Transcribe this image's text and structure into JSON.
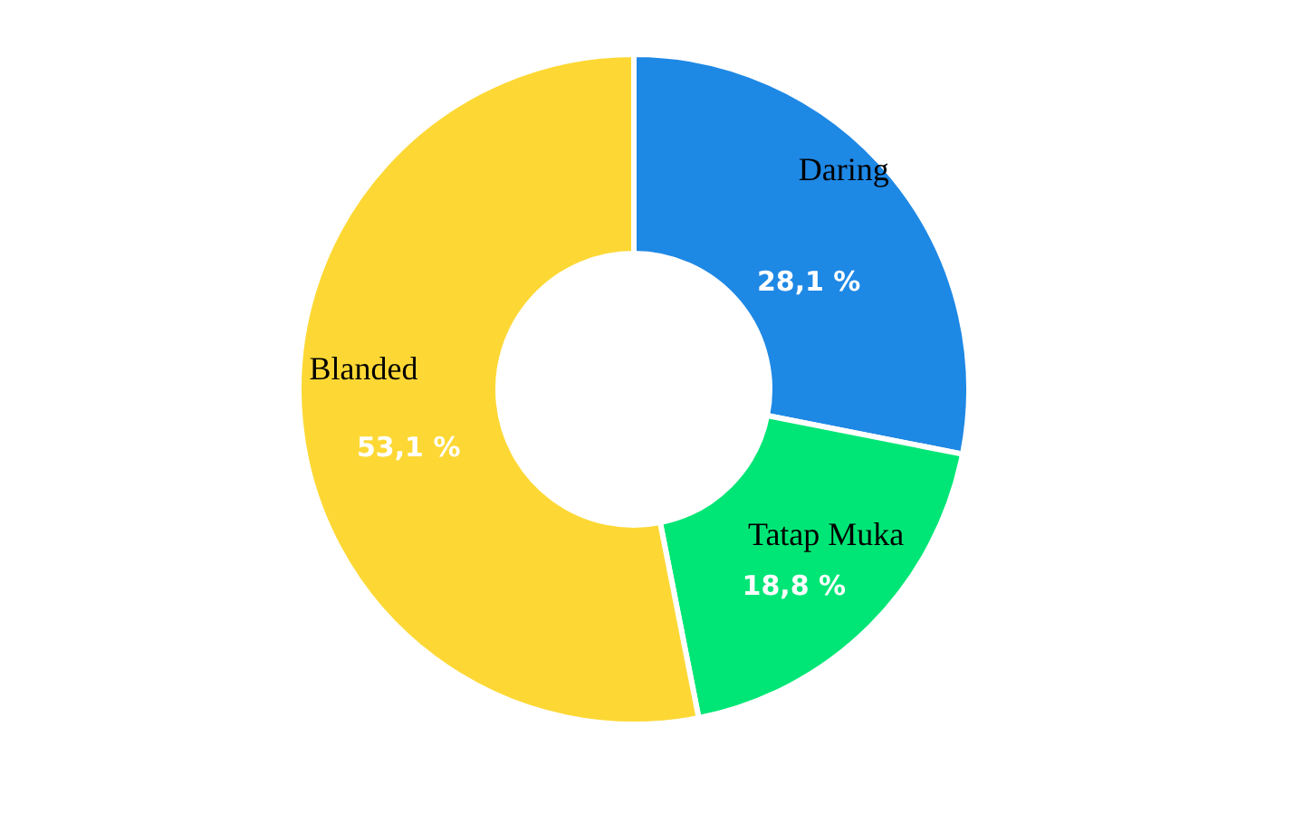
{
  "chart_data": {
    "type": "donut",
    "categories": [
      "Daring",
      "Tatap Muka",
      "Blanded"
    ],
    "values": [
      28.1,
      18.8,
      53.1
    ],
    "colors": [
      "#1e88e5",
      "#00e676",
      "#fdd835"
    ],
    "value_labels": [
      "28,1 %",
      "18,8 %",
      "53,1 %"
    ],
    "legend": false
  }
}
